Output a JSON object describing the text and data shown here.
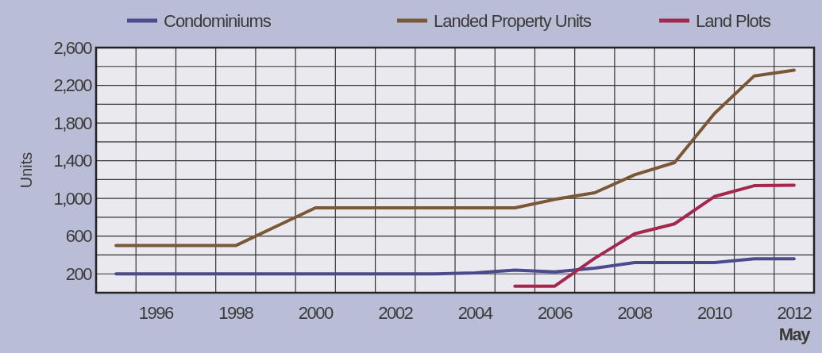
{
  "chart_data": {
    "type": "line",
    "ylabel": "Units",
    "categories": [
      null,
      "1996",
      null,
      "1998",
      null,
      "2000",
      null,
      "2002",
      null,
      "2004",
      null,
      "2006",
      null,
      "2008",
      null,
      "2010",
      null,
      "2012\nMay"
    ],
    "series": [
      {
        "name": "Condominiums",
        "color": "#4a4a8c",
        "values": [
          200,
          200,
          200,
          200,
          200,
          200,
          200,
          200,
          200,
          210,
          240,
          220,
          260,
          320,
          320,
          320,
          360,
          360
        ]
      },
      {
        "name": "Landed Property Units",
        "color": "#7a5836",
        "values": [
          500,
          500,
          500,
          500,
          700,
          900,
          900,
          900,
          900,
          900,
          900,
          990,
          1060,
          1250,
          1380,
          1900,
          2300,
          2360
        ]
      },
      {
        "name": "Land Plots",
        "color": "#a3284e",
        "values": [
          null,
          null,
          null,
          null,
          null,
          null,
          null,
          null,
          null,
          null,
          70,
          70,
          365,
          625,
          730,
          1020,
          1135,
          1140
        ]
      }
    ],
    "ylim": [
      0,
      2600
    ],
    "yticks": [
      {
        "value": 0,
        "label": null
      },
      200,
      {
        "value": 400,
        "label": null
      },
      600,
      {
        "value": 800,
        "label": null
      },
      {
        "value": 1000,
        "label": "1,000"
      },
      {
        "value": 1200,
        "label": null
      },
      {
        "value": 1400,
        "label": "1,400"
      },
      {
        "value": 1600,
        "label": null
      },
      {
        "value": 1800,
        "label": "1,800"
      },
      {
        "value": 2000,
        "label": null
      },
      {
        "value": 2200,
        "label": "2,200"
      },
      {
        "value": 2400,
        "label": null
      },
      {
        "value": 2600,
        "label": "2,600"
      }
    ],
    "grid": true,
    "legend": "top",
    "marker": "none",
    "line_style": "solid"
  }
}
